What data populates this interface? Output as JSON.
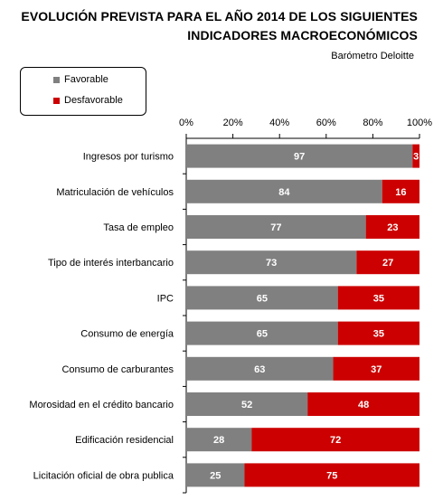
{
  "chart_data": {
    "type": "bar",
    "orientation": "horizontal",
    "stacked": true,
    "title": "EVOLUCIÓN PREVISTA PARA EL AÑO 2014 DE LOS SIGUIENTES INDICADORES MACROECONÓMICOS",
    "title_lines": [
      "EVOLUCIÓN PREVISTA PARA EL AÑO 2014 DE LOS SIGUIENTES",
      "INDICADORES MACROECONÓMICOS"
    ],
    "source": "Barómetro Deloitte",
    "categories": [
      "Ingresos por turismo",
      "Matriculación de vehículos",
      "Tasa de empleo",
      "Tipo de interés interbancario",
      "IPC",
      "Consumo de energía",
      "Consumo de carburantes",
      "Morosidad en el crédito bancario",
      "Edificación residencial",
      "Licitación oficial de obra publica"
    ],
    "series": [
      {
        "name": "Favorable",
        "color": "#808080",
        "values": [
          97,
          84,
          77,
          73,
          65,
          65,
          63,
          52,
          28,
          25
        ]
      },
      {
        "name": "Desfavorable",
        "color": "#cc0000",
        "values": [
          3,
          16,
          23,
          27,
          35,
          35,
          37,
          48,
          72,
          75
        ]
      }
    ],
    "xlim": [
      0,
      100
    ],
    "x_ticks": [
      "0%",
      "20%",
      "40%",
      "60%",
      "80%",
      "100%"
    ],
    "legend_position": "top-left",
    "grid": false
  }
}
